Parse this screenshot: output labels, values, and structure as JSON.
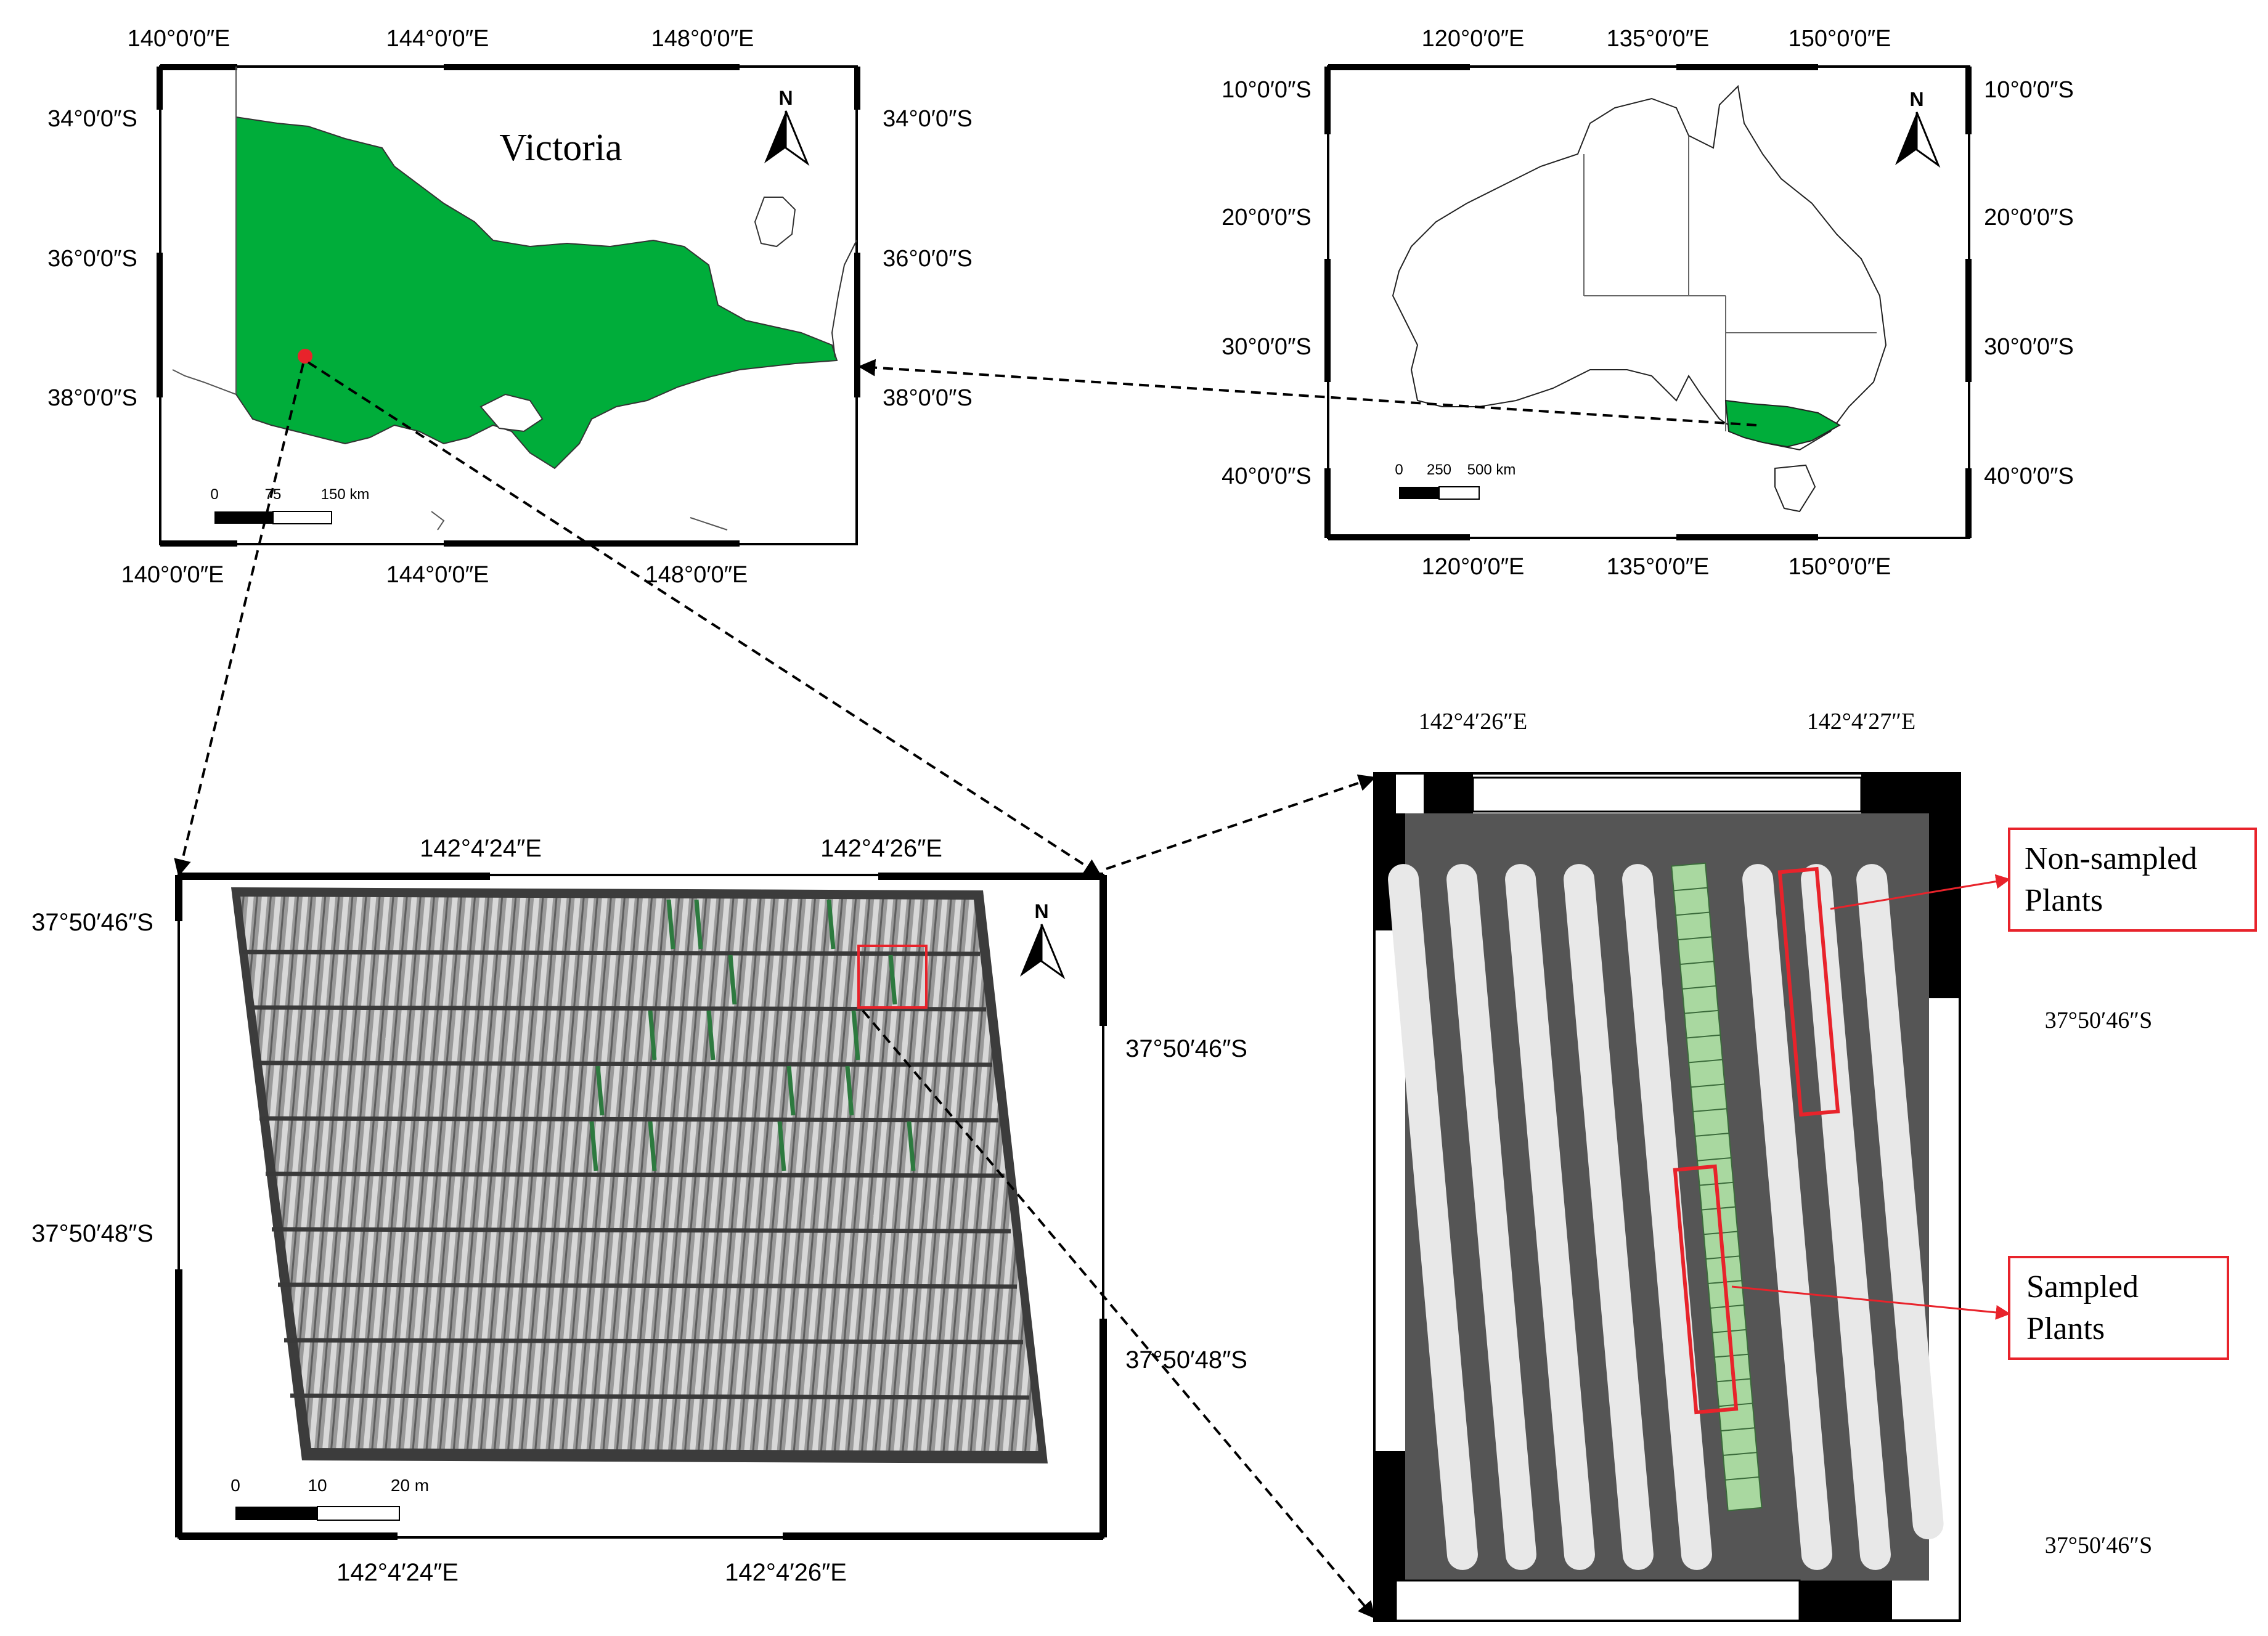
{
  "colors": {
    "state_fill": "#00ad3a",
    "highlight": "#e8232b",
    "frame": "#000000",
    "transect": "#2d7a3f",
    "sampled_cell": "#a9d8a0"
  },
  "victoria_map": {
    "title": "Victoria",
    "north_label": "N",
    "top_ticks": [
      "140°0′0″E",
      "144°0′0″E",
      "148°0′0″E"
    ],
    "bottom_ticks": [
      "140°0′0″E",
      "144°0′0″E",
      "148°0′0″E"
    ],
    "left_ticks": [
      "34°0′0″S",
      "36°0′0″S",
      "38°0′0″S"
    ],
    "right_ticks": [
      "34°0′0″S",
      "36°0′0″S",
      "38°0′0″S"
    ],
    "scale_labels": [
      "0",
      "75",
      "150 km"
    ]
  },
  "australia_map": {
    "north_label": "N",
    "top_ticks": [
      "120°0′0″E",
      "135°0′0″E",
      "150°0′0″E"
    ],
    "bottom_ticks": [
      "120°0′0″E",
      "135°0′0″E",
      "150°0′0″E"
    ],
    "left_ticks": [
      "10°0′0″S",
      "20°0′0″S",
      "30°0′0″S",
      "40°0′0″S"
    ],
    "right_ticks": [
      "10°0′0″S",
      "20°0′0″S",
      "30°0′0″S",
      "40°0′0″S"
    ],
    "scale_labels": [
      "0",
      "250",
      "500 km"
    ]
  },
  "field_map": {
    "north_label": "N",
    "top_ticks": [
      "142°4′24″E",
      "142°4′26″E"
    ],
    "bottom_ticks": [
      "142°4′24″E",
      "142°4′26″E"
    ],
    "left_ticks": [
      "37°50′46″S",
      "37°50′48″S"
    ],
    "right_ticks": [
      "37°50′46″S",
      "37°50′48″S"
    ],
    "scale_labels": [
      "0",
      "10",
      "20 m"
    ]
  },
  "zoom_map": {
    "top_ticks": [
      "142°4′26″E",
      "142°4′27″E"
    ],
    "right_ticks": [
      "37°50′46″S",
      "37°50′46″S"
    ],
    "callout_non_sampled": [
      "Non-sampled",
      "Plants"
    ],
    "callout_sampled": [
      "Sampled",
      "Plants"
    ]
  }
}
